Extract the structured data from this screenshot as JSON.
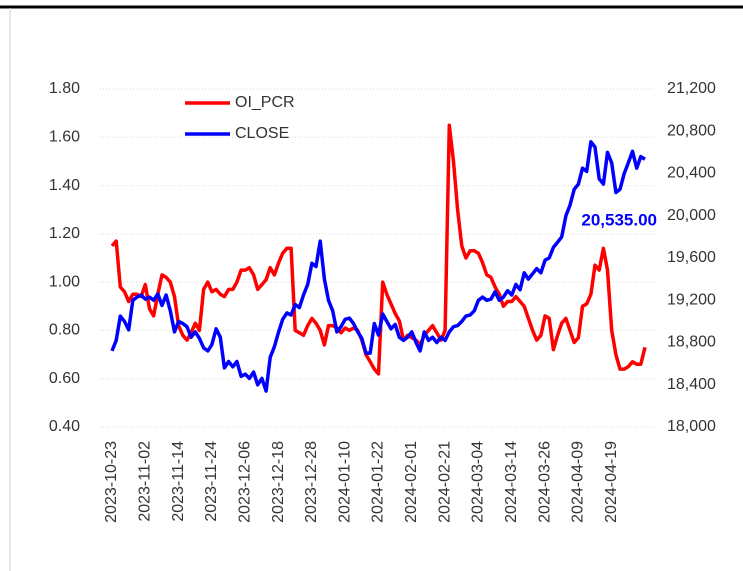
{
  "chart_data": {
    "type": "line",
    "categories": [
      "2023-10-23",
      null,
      null,
      null,
      null,
      null,
      null,
      null,
      "2023-11-02",
      null,
      null,
      null,
      null,
      null,
      null,
      null,
      "2023-11-14",
      null,
      null,
      null,
      null,
      null,
      null,
      null,
      "2023-11-24",
      null,
      null,
      null,
      null,
      null,
      null,
      null,
      "2023-12-06",
      null,
      null,
      null,
      null,
      null,
      null,
      null,
      "2023-12-18",
      null,
      null,
      null,
      null,
      null,
      null,
      null,
      "2023-12-28",
      null,
      null,
      null,
      null,
      null,
      null,
      null,
      "2024-01-10",
      null,
      null,
      null,
      null,
      null,
      null,
      null,
      "2024-01-22",
      null,
      null,
      null,
      null,
      null,
      null,
      null,
      "2024-02-01",
      null,
      null,
      null,
      null,
      null,
      null,
      null,
      "2024-02-21",
      null,
      null,
      null,
      null,
      null,
      null,
      null,
      "2024-03-04",
      null,
      null,
      null,
      null,
      null,
      null,
      null,
      "2024-03-14",
      null,
      null,
      null,
      null,
      null,
      null,
      null,
      "2024-03-26",
      null,
      null,
      null,
      null,
      null,
      null,
      null,
      "2024-04-09",
      null,
      null,
      null,
      null,
      null,
      null,
      null,
      "2024-04-19",
      null,
      null,
      null,
      null,
      null,
      null,
      null,
      null
    ],
    "series": [
      {
        "name": "OI_PCR",
        "color": "#ff0000",
        "values": [
          1.15,
          1.17,
          0.98,
          0.96,
          0.92,
          0.95,
          0.95,
          0.94,
          0.99,
          0.89,
          0.86,
          0.95,
          1.03,
          1.02,
          1.0,
          0.94,
          0.82,
          0.78,
          0.76,
          0.79,
          0.83,
          0.8,
          0.97,
          1.0,
          0.96,
          0.97,
          0.95,
          0.94,
          0.97,
          0.97,
          1.0,
          1.05,
          1.05,
          1.06,
          1.03,
          0.97,
          0.99,
          1.01,
          1.06,
          1.03,
          1.08,
          1.12,
          1.14,
          1.14,
          0.8,
          0.79,
          0.78,
          0.82,
          0.85,
          0.83,
          0.8,
          0.74,
          0.82,
          0.82,
          0.81,
          0.79,
          0.81,
          0.8,
          0.81,
          0.8,
          0.76,
          0.7,
          0.67,
          0.64,
          0.62,
          1.0,
          0.95,
          0.91,
          0.87,
          0.84,
          0.76,
          0.78,
          0.77,
          0.76,
          0.74,
          0.78,
          0.8,
          0.82,
          0.79,
          0.76,
          0.8,
          1.65,
          1.5,
          1.3,
          1.15,
          1.1,
          1.13,
          1.13,
          1.12,
          1.08,
          1.03,
          1.02,
          0.98,
          0.95,
          0.9,
          0.92,
          0.92,
          0.94,
          0.92,
          0.9,
          0.85,
          0.8,
          0.76,
          0.78,
          0.86,
          0.85,
          0.72,
          0.78,
          0.83,
          0.85,
          0.8,
          0.75,
          0.77,
          0.9,
          0.91,
          0.95,
          1.07,
          1.05,
          1.14,
          1.05,
          0.8,
          0.7,
          0.64,
          0.64,
          0.65,
          0.67,
          0.66,
          0.66,
          0.73
        ]
      },
      {
        "name": "CLOSE",
        "color": "#0000ff",
        "axis": "y2",
        "values": [
          18720,
          18820,
          19050,
          19000,
          18920,
          19200,
          19230,
          19250,
          19210,
          19230,
          19200,
          19260,
          19150,
          19250,
          19100,
          18900,
          19000,
          18980,
          18950,
          18850,
          18900,
          18840,
          18750,
          18720,
          18780,
          18930,
          18850,
          18560,
          18620,
          18570,
          18620,
          18480,
          18500,
          18460,
          18520,
          18400,
          18460,
          18340,
          18660,
          18760,
          18900,
          19020,
          19080,
          19060,
          19160,
          19130,
          19250,
          19350,
          19550,
          19520,
          19760,
          19400,
          19200,
          19100,
          18900,
          18950,
          19020,
          19030,
          18980,
          18900,
          18840,
          18700,
          18700,
          18980,
          18870,
          19070,
          19000,
          18930,
          18970,
          18850,
          18820,
          18850,
          18900,
          18800,
          18720,
          18900,
          18820,
          18850,
          18800,
          18850,
          18820,
          18900,
          18950,
          18960,
          19000,
          19050,
          19060,
          19100,
          19200,
          19230,
          19200,
          19210,
          19280,
          19200,
          19230,
          19290,
          19250,
          19350,
          19300,
          19460,
          19400,
          19450,
          19500,
          19460,
          19580,
          19600,
          19700,
          19750,
          19800,
          20000,
          20100,
          20250,
          20300,
          20450,
          20420,
          20700,
          20650,
          20350,
          20300,
          20600,
          20500,
          20220,
          20250,
          20400,
          20500,
          20610,
          20450,
          20560,
          20535
        ],
        "value_labels": [
          null,
          null,
          null,
          null,
          null,
          null,
          null,
          null,
          null,
          null,
          null,
          null,
          null,
          null,
          null,
          null,
          null,
          null,
          null,
          null,
          null,
          null,
          null,
          null,
          null,
          null,
          null,
          null,
          null,
          null,
          null,
          null,
          null,
          null,
          null,
          null,
          null,
          null,
          null,
          null,
          null,
          null,
          null,
          null,
          null,
          null,
          null,
          null,
          null,
          null,
          null,
          null,
          null,
          null,
          null,
          null,
          null,
          null,
          null,
          null,
          null,
          null,
          null,
          null,
          null,
          null,
          null,
          null,
          null,
          null,
          null,
          null,
          null,
          null,
          null,
          null,
          null,
          null,
          null,
          null,
          null,
          null,
          null,
          null,
          null,
          null,
          null,
          null,
          null,
          null,
          null,
          null,
          null,
          null,
          null,
          null,
          null,
          null,
          null,
          null,
          null,
          null,
          null,
          null,
          null,
          null,
          null,
          null,
          null,
          null,
          null,
          null,
          null,
          null,
          null,
          null,
          null,
          null,
          null,
          null,
          null,
          null,
          null,
          null,
          null,
          null,
          null,
          null,
          "20,535.00"
        ]
      }
    ],
    "ylim": [
      0.4,
      1.8
    ],
    "yticks": [
      {
        "value": 0.4,
        "label": "0.40"
      },
      {
        "value": 0.6,
        "label": "0.60"
      },
      {
        "value": 0.8,
        "label": "0.80"
      },
      {
        "value": 1.0,
        "label": "1.00"
      },
      {
        "value": 1.2,
        "label": "1.20"
      },
      {
        "value": 1.4,
        "label": "1.40"
      },
      {
        "value": 1.6,
        "label": "1.60"
      },
      {
        "value": 1.8,
        "label": "1.80"
      }
    ],
    "y2lim": [
      18000,
      21200
    ],
    "y2ticks": [
      {
        "value": 18000,
        "label": "18,000"
      },
      {
        "value": 18400,
        "label": "18,400"
      },
      {
        "value": 18800,
        "label": "18,800"
      },
      {
        "value": 19200,
        "label": "19,200"
      },
      {
        "value": 19600,
        "label": "19,600"
      },
      {
        "value": 20000,
        "label": "20,000"
      },
      {
        "value": 20400,
        "label": "20,400"
      },
      {
        "value": 20800,
        "label": "20,800"
      },
      {
        "value": 21200,
        "label": "21,200"
      }
    ],
    "grid": true,
    "legend": "top-left"
  }
}
